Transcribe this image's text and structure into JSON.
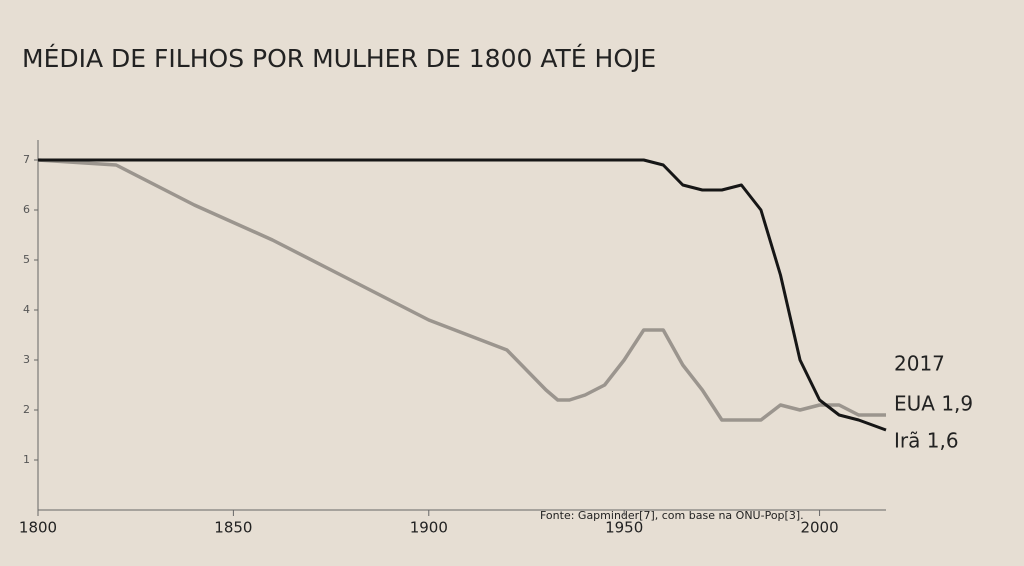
{
  "chart_data": {
    "type": "line",
    "title": "MÉDIA DE FILHOS POR MULHER DE 1800 ATÉ HOJE",
    "source": "Fonte: Gapminder[7], com base na ONU-Pop[3].",
    "end_year_label": "2017",
    "x": [
      1800,
      1820,
      1840,
      1860,
      1880,
      1900,
      1920,
      1930,
      1933,
      1936,
      1940,
      1945,
      1950,
      1955,
      1960,
      1965,
      1970,
      1975,
      1980,
      1985,
      1990,
      1995,
      2000,
      2005,
      2010,
      2017
    ],
    "series": [
      {
        "name": "EUA 1,9",
        "color": "#9b958e",
        "values": [
          7.0,
          6.9,
          6.1,
          5.4,
          4.6,
          3.8,
          3.2,
          2.4,
          2.2,
          2.2,
          2.3,
          2.5,
          3.0,
          3.6,
          3.6,
          2.9,
          2.4,
          1.8,
          1.8,
          1.8,
          2.1,
          2.0,
          2.1,
          2.1,
          1.9,
          1.9
        ]
      },
      {
        "name": "Irã 1,6",
        "color": "#161616",
        "values": [
          7.0,
          7.0,
          7.0,
          7.0,
          7.0,
          7.0,
          7.0,
          7.0,
          7.0,
          7.0,
          7.0,
          7.0,
          7.0,
          7.0,
          6.9,
          6.5,
          6.4,
          6.4,
          6.5,
          6.0,
          4.7,
          3.0,
          2.2,
          1.9,
          1.8,
          1.6
        ]
      }
    ],
    "xlim": [
      1800,
      2017
    ],
    "xticks": [
      1800,
      1850,
      1900,
      1950,
      2000
    ],
    "ylim": [
      0,
      7.6
    ],
    "yticks": [
      1,
      2,
      3,
      4,
      5,
      6,
      7
    ]
  }
}
